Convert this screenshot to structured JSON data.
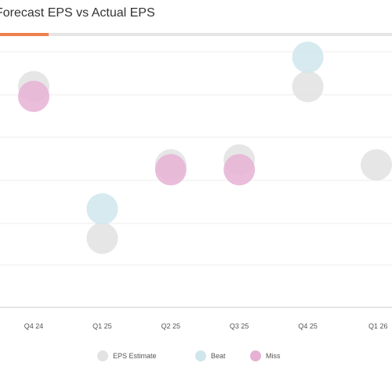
{
  "header": {
    "title": "Forecast EPS vs Actual EPS",
    "accent_color": "#f07f4e"
  },
  "chart_data": {
    "type": "scatter",
    "categories": [
      "Q4 24",
      "Q1 25",
      "Q2 25",
      "Q3 25",
      "Q4 25",
      "Q1 26"
    ],
    "ylim": [
      0,
      5
    ],
    "grid": true,
    "legend_position": "bottom",
    "series": [
      {
        "name": "EPS Estimate",
        "color": "#e3e3e3",
        "values": [
          4.4,
          1.3,
          2.8,
          2.9,
          4.4,
          2.8
        ]
      },
      {
        "name": "Beat",
        "color": "#cfe6ec",
        "values": [
          null,
          1.9,
          null,
          null,
          5.0,
          null
        ]
      },
      {
        "name": "Miss",
        "color": "#e6b1d5",
        "values": [
          4.2,
          null,
          2.7,
          2.7,
          null,
          null
        ]
      }
    ]
  }
}
